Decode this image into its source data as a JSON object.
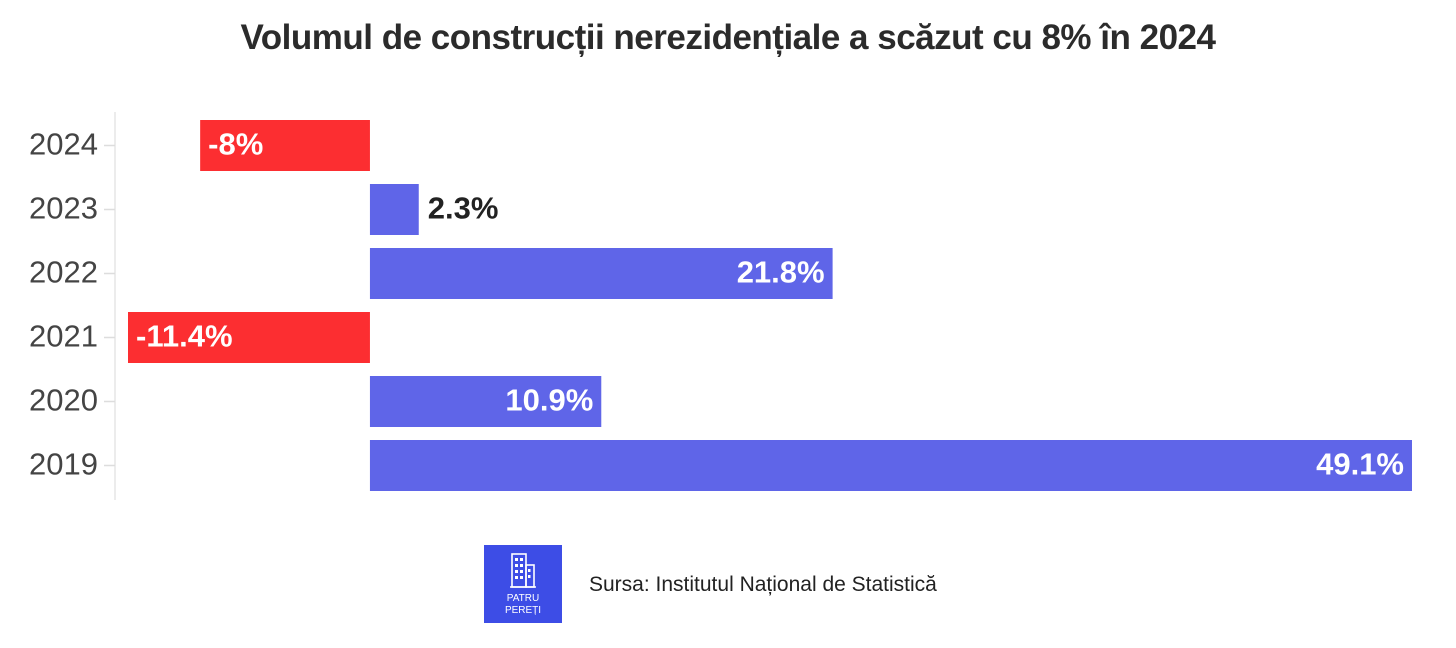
{
  "chart_data": {
    "type": "bar",
    "orientation": "horizontal",
    "title": "Volumul de construcții nerezidențiale a scăzut cu 8% în 2024",
    "categories": [
      "2024",
      "2023",
      "2022",
      "2021",
      "2020",
      "2019"
    ],
    "values": [
      -8,
      2.3,
      21.8,
      -11.4,
      10.9,
      49.1
    ],
    "value_labels": [
      "-8%",
      "2.3%",
      "21.8%",
      "-11.4%",
      "10.9%",
      "49.1%"
    ],
    "xlim": [
      -11.4,
      49.1
    ],
    "grid": false,
    "colors": {
      "positive": "#5f65e8",
      "negative": "#fc2e31"
    }
  },
  "footer": {
    "logo_text": [
      "PATRU",
      "PEREȚI"
    ],
    "source": "Sursa: Institutul Național de Statistică"
  }
}
